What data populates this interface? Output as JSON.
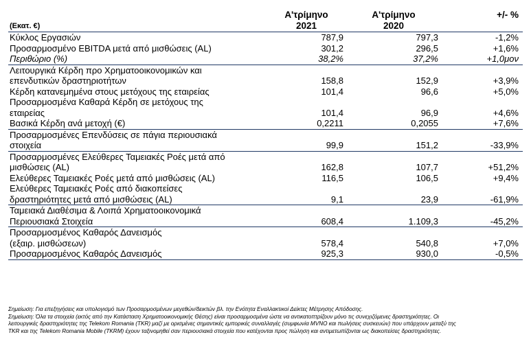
{
  "header": {
    "unit": "(Εκατ. €)",
    "col1_line1": "Α'τρίμηνο",
    "col1_line2": "2021",
    "col2_line1": "Α'τρίμηνο",
    "col2_line2": "2020",
    "col3": "+/- %"
  },
  "rows": [
    {
      "label": "Κύκλος Εργασιών",
      "v1": "787,9",
      "v2": "797,3",
      "chg": "-1,2%"
    },
    {
      "label": "Προσαρμοσμένο EBITDA μετά από μισθώσεις (AL)",
      "v1": "301,2",
      "v2": "296,5",
      "chg": "+1,6%"
    },
    {
      "label": "Περιθώριο (%)",
      "v1": "38,2%",
      "v2": "37,2%",
      "chg": "+1,0μον"
    },
    {
      "label_line1": "Λειτουργικά Κέρδη προ Χρηματοοικονομικών και",
      "label_line2": "επενδυτικών δραστηριοτήτων",
      "v1": "158,8",
      "v2": "152,9",
      "chg": "+3,9%"
    },
    {
      "label": "Κέρδη κατανεμημένα στους μετόχους της εταιρείας",
      "v1": "101,4",
      "v2": "96,6",
      "chg": "+5,0%"
    },
    {
      "label_line1": "Προσαρμοσμένα Καθαρά Κέρδη σε μετόχους της",
      "label_line2": "εταιρείας",
      "v1": "101,4",
      "v2": "96,9",
      "chg": "+4,6%"
    },
    {
      "label": "Βασικά Κέρδη ανά μετοχή (€)",
      "v1": "0,2211",
      "v2": "0,2055",
      "chg": "+7,6%"
    },
    {
      "label_line1": "Προσαρμοσμένες Επενδύσεις σε πάγια περιουσιακά",
      "label_line2": "στοιχεία",
      "v1": "99,9",
      "v2": "151,2",
      "chg": "-33,9%"
    },
    {
      "label_line1": "Προσαρμοσμένες  Ελεύθερες Ταμειακές Ροές μετά από",
      "label_line2": "μισθώσεις (AL)",
      "v1": "162,8",
      "v2": "107,7",
      "chg": "+51,2%"
    },
    {
      "label": "Ελεύθερες Ταμειακές Ροές μετά από μισθώσεις (AL)",
      "v1": "116,5",
      "v2": "106,5",
      "chg": "+9,4%"
    },
    {
      "label_line1": "Ελεύθερες Ταμειακές Ροές από διακοπείσες",
      "label_line2": "δραστηριότητες μετά από μισθώσεις (AL)",
      "v1": "9,1",
      "v2": "23,9",
      "chg": "-61,9%"
    },
    {
      "label_line1": "Ταμειακά Διαθέσιμα & Λοιπά Χρηματοοικονομικά",
      "label_line2": "Περιουσιακά Στοιχεία",
      "v1": "608,4",
      "v2": "1.109,3",
      "chg": "-45,2%"
    },
    {
      "label_line1": "Προσαρμοσμένος Καθαρός Δανεισμός",
      "label_line2": "(εξαιρ. μισθώσεων)",
      "v1": "578,4",
      "v2": "540,8",
      "chg": "+7,0%"
    },
    {
      "label": "Προσαρμοσμένος Καθαρός Δανεισμός",
      "v1": "925,3",
      "v2": "930,0",
      "chg": "-0,5%"
    }
  ],
  "notes": {
    "line1": "Σημείωση: Για επεξηγήσεις και υπολογισμό των Προσαρμοσμένων μεγεθών/δεικτών βλ. την Ενότητα Εναλλακτικοί Δείκτες Μέτρησης Απόδοσης.",
    "line2": "Σημείωση: Όλα τα στοιχεία (εκτός από την Κατάσταση Χρηματοοικονομικής Θέσης) είναι προσαρμοσμένα ώστε να αντικατοπτρίζουν μόνο τις συνεχιζόμενες δραστηριότητες. Οι",
    "line3": "λειτουργικές δραστηριότητες της Telekom Romania (TKR) μαζί με ορισμένες σημαντικές εμπορικές συναλλαγές (συμφωνία MVNO και πωλήσεις συσκευών) που υπάρχουν μεταξύ της",
    "line4": "TKR και της Telekom Romania Mobile (TKRM) έχουν ταξινομηθεί σαν περιουσιακά στοιχεία που κατέχονται προς πώληση και αντιμετωπίζονται ως διακοπείσες δραστηριότητες."
  }
}
